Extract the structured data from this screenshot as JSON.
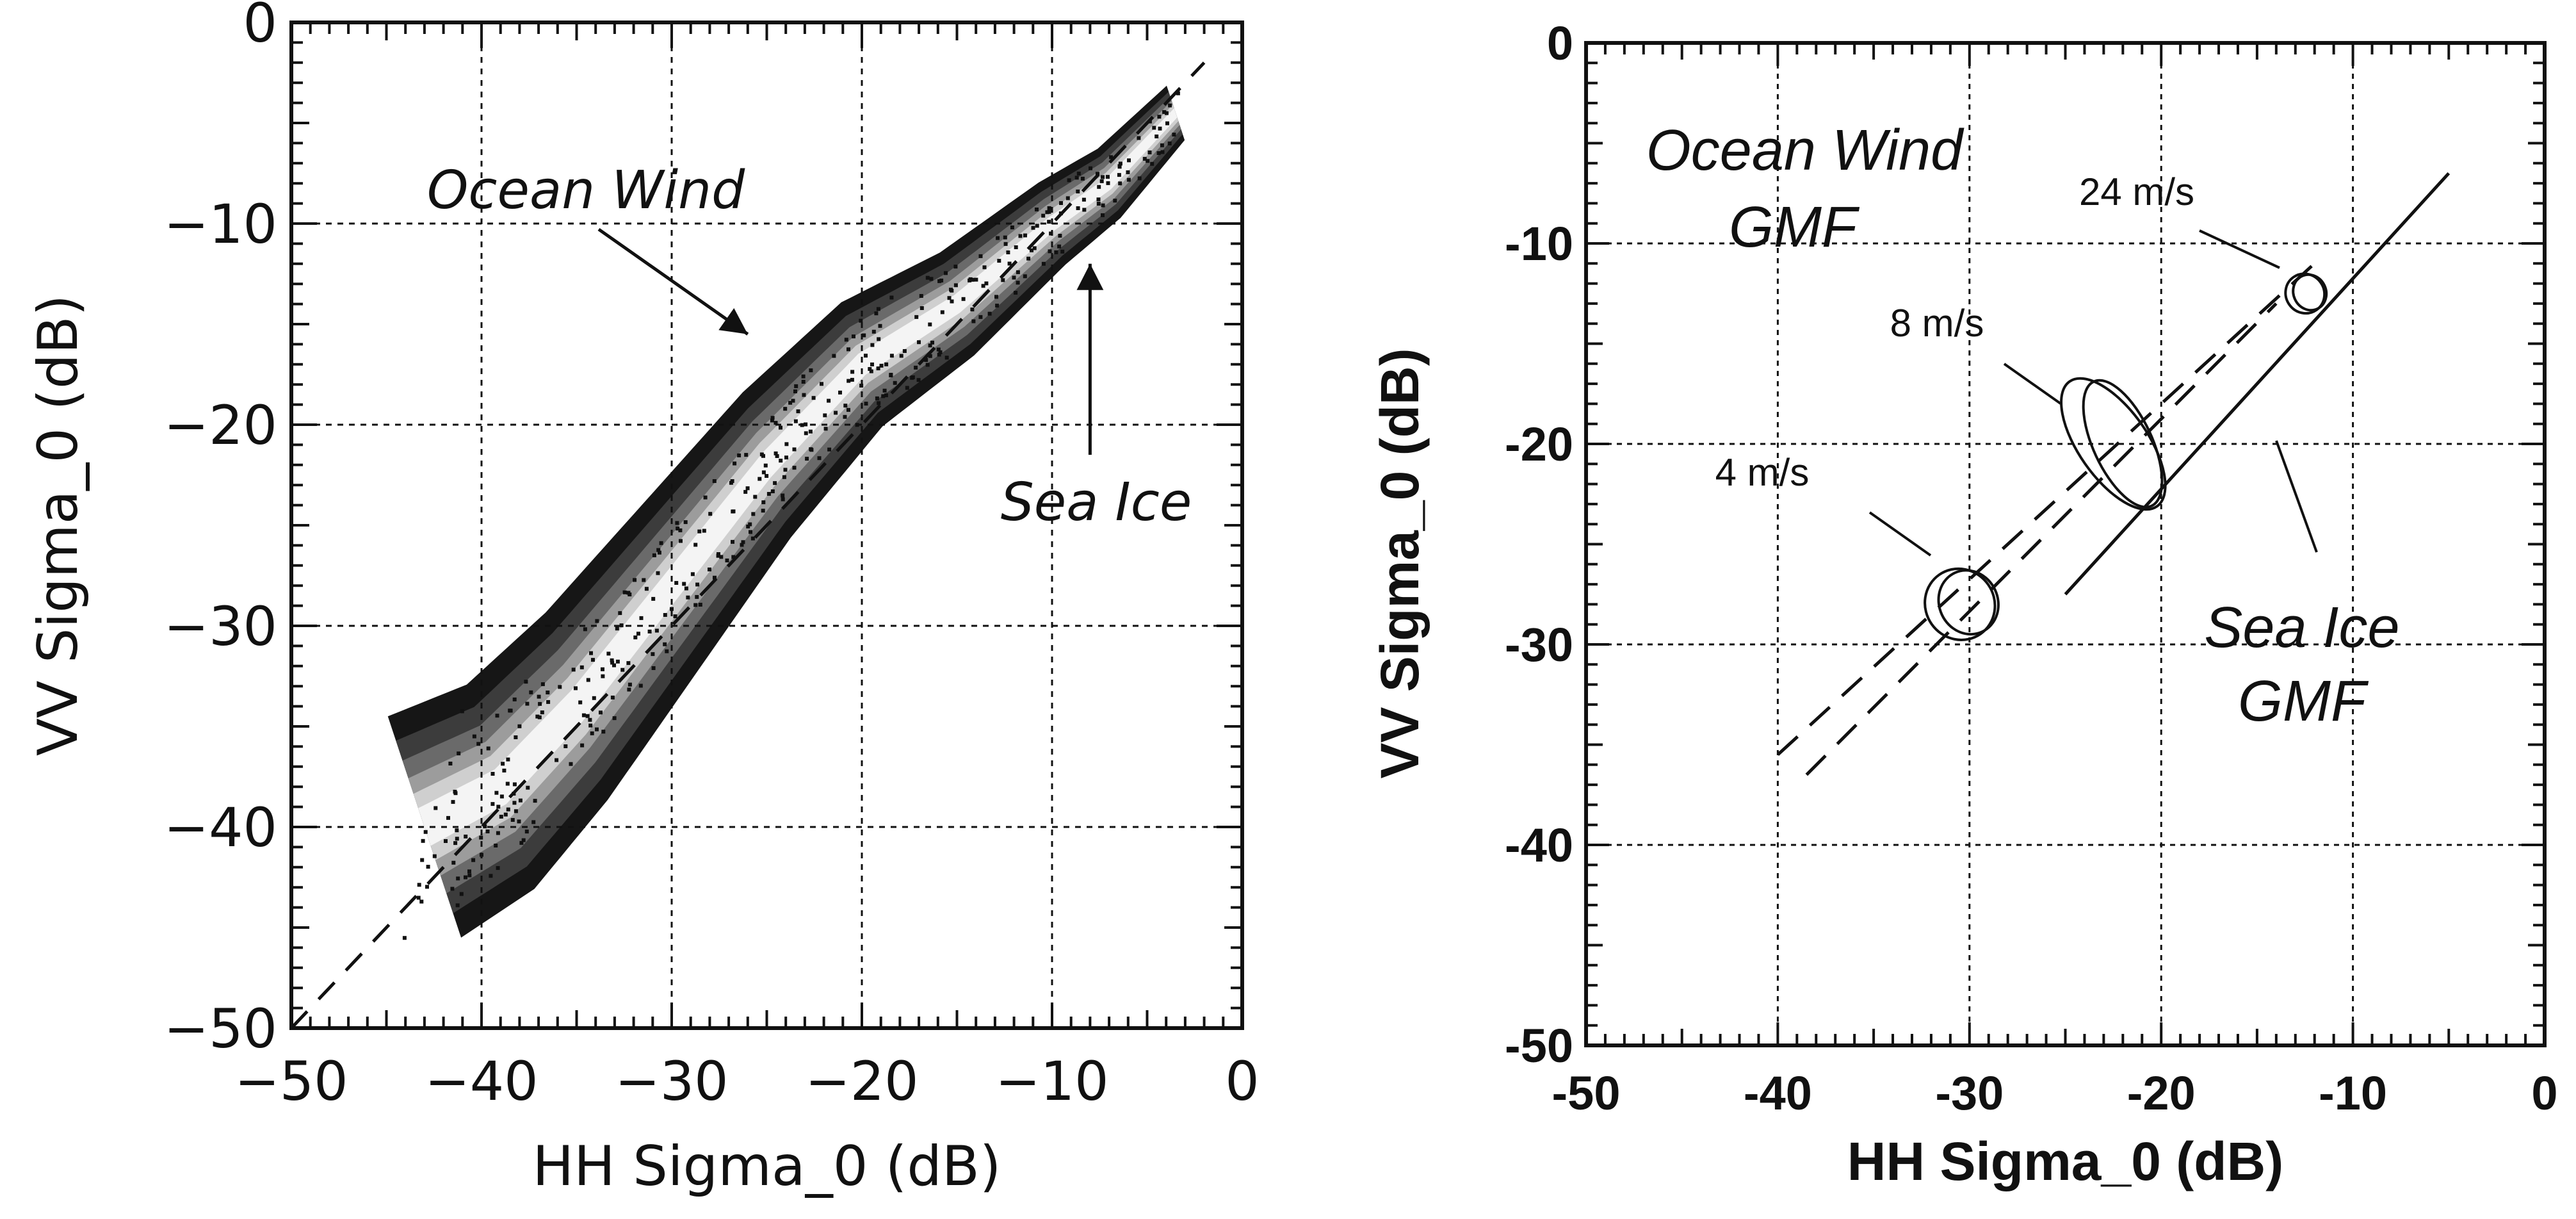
{
  "chart_data": [
    {
      "type": "heatmap",
      "xlabel": "HH Sigma_0 (dB)",
      "ylabel": "VV Sigma_0 (dB)",
      "xlim": [
        -50,
        0
      ],
      "ylim": [
        -50,
        0
      ],
      "x_ticks": [
        -50,
        -40,
        -30,
        -20,
        -10,
        0
      ],
      "y_ticks": [
        -50,
        -40,
        -30,
        -20,
        -10,
        0
      ],
      "x_tick_labels": [
        "−50",
        "−40",
        "−30",
        "−20",
        "−10",
        "0"
      ],
      "y_tick_labels": [
        "−50",
        "−40",
        "−30",
        "−20",
        "−10",
        "0"
      ],
      "grid": true,
      "reference_line": {
        "style": "dashed",
        "x": [
          -50,
          -2
        ],
        "y": [
          -50,
          -2
        ]
      },
      "density_ridge": {
        "x": [
          -43,
          -39,
          -35,
          -30,
          -25,
          -20,
          -15,
          -10,
          -7,
          -3
        ],
        "y": [
          -40,
          -38,
          -34,
          -28,
          -22,
          -17,
          -14,
          -10,
          -8,
          -4
        ]
      },
      "annotations": [
        {
          "text": "Ocean Wind",
          "arrow_to": [
            -26,
            -15.5
          ]
        },
        {
          "text": "Sea Ice",
          "arrow_to": [
            -8,
            -12
          ]
        }
      ]
    },
    {
      "type": "line",
      "xlabel": "HH Sigma_0 (dB)",
      "ylabel": "VV Sigma_0 (dB)",
      "xlim": [
        -50,
        0
      ],
      "ylim": [
        -50,
        0
      ],
      "x_ticks": [
        -50,
        -40,
        -30,
        -20,
        -10,
        0
      ],
      "y_ticks": [
        -50,
        -40,
        -30,
        -20,
        -10,
        0
      ],
      "x_tick_labels": [
        "-50",
        "-40",
        "-30",
        "-20",
        "-10",
        "0"
      ],
      "y_tick_labels": [
        "-50",
        "-40",
        "-30",
        "-20",
        "-10",
        "0"
      ],
      "grid": true,
      "series": [
        {
          "style": "dashed",
          "x": [
            -40,
            -12
          ],
          "y": [
            -35.5,
            -11
          ]
        },
        {
          "style": "dashed",
          "x": [
            -38.5,
            -14
          ],
          "y": [
            -36.5,
            -13
          ]
        },
        {
          "style": "solid",
          "x": [
            -25,
            -5
          ],
          "y": [
            -27.5,
            -6.5
          ]
        }
      ],
      "contours": [
        {
          "label": "4 m/s",
          "center": [
            -30.5,
            -28
          ],
          "rx": 1.8,
          "ry": 1.8
        },
        {
          "label": "8 m/s",
          "center": [
            -22.5,
            -20
          ],
          "rx": 1.8,
          "ry": 3.8
        },
        {
          "label": "24 m/s",
          "center": [
            -12.5,
            -12.5
          ],
          "rx": 1.0,
          "ry": 1.0
        }
      ],
      "annotations": [
        {
          "text": "Ocean Wind",
          "text2": "GMF"
        },
        {
          "text": "Sea Ice",
          "text2": "GMF"
        },
        {
          "text": "4 m/s"
        },
        {
          "text": "8 m/s"
        },
        {
          "text": "24 m/s"
        }
      ]
    }
  ]
}
